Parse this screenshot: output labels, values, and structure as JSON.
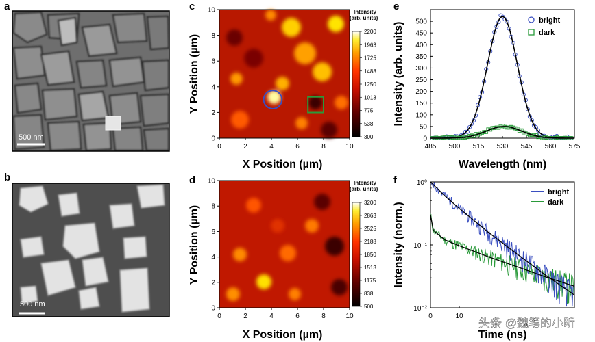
{
  "figure": {
    "panel_labels": {
      "a": "a",
      "b": "b",
      "c": "c",
      "d": "d",
      "e": "e",
      "f": "f"
    },
    "sem": {
      "a": {
        "scale_bar": "500 nm",
        "description": "compact grains"
      },
      "b": {
        "scale_bar": "500 nm",
        "description": "faceted crystals"
      }
    },
    "watermark": "头条 @魏笔的小昕"
  },
  "chart_data": [
    {
      "id": "c",
      "type": "heatmap",
      "xlabel": "X Position (µm)",
      "ylabel": "Y Position (µm)",
      "xlim": [
        0,
        10
      ],
      "ylim": [
        0,
        10
      ],
      "xticks": [
        "0",
        "2",
        "4",
        "6",
        "8",
        "10"
      ],
      "yticks": [
        "0",
        "2",
        "4",
        "6",
        "8",
        "10"
      ],
      "colorbar_title": "Intensity (arb. units)",
      "colorbar_ticks": [
        "2200",
        "1963",
        "1725",
        "1488",
        "1250",
        "1013",
        "775",
        "538",
        "300"
      ],
      "vmin": 300,
      "vmax": 2200,
      "markers": [
        {
          "shape": "circle",
          "label": "bright",
          "x": 4.1,
          "y": 3.0,
          "r": 0.7,
          "color": "#3a4fc0"
        },
        {
          "shape": "square",
          "label": "dark",
          "x": 7.4,
          "y": 2.6,
          "half": 0.6,
          "color": "#2a9a3a"
        }
      ]
    },
    {
      "id": "d",
      "type": "heatmap",
      "xlabel": "X Position (µm)",
      "ylabel": "Y Position (µm)",
      "xlim": [
        0,
        10
      ],
      "ylim": [
        0,
        10
      ],
      "xticks": [
        "0",
        "2",
        "4",
        "6",
        "8",
        "10"
      ],
      "yticks": [
        "0",
        "2",
        "4",
        "6",
        "8",
        "10"
      ],
      "colorbar_title": "Intensity (arb. units)",
      "colorbar_ticks": [
        "3200",
        "2863",
        "2525",
        "2188",
        "1850",
        "1513",
        "1175",
        "838",
        "500"
      ],
      "vmin": 500,
      "vmax": 3200
    },
    {
      "id": "e",
      "type": "scatter",
      "xlabel": "Wavelength (nm)",
      "ylabel": "Intensity (arb. units)",
      "xlim": [
        485,
        575
      ],
      "ylim": [
        0,
        550
      ],
      "xticks": [
        485,
        500,
        515,
        530,
        545,
        560,
        575
      ],
      "yticks": [
        0,
        50,
        100,
        150,
        200,
        250,
        300,
        350,
        400,
        450,
        500
      ],
      "series": [
        {
          "name": "bright",
          "marker": "circle",
          "color": "#3a4fc0",
          "peak_nm": 530,
          "peak_value": 520,
          "fwhm_nm": 22
        },
        {
          "name": "dark",
          "marker": "square",
          "color": "#2a9a3a",
          "peak_nm": 531,
          "peak_value": 50,
          "fwhm_nm": 26
        }
      ],
      "fit_color": "#000000"
    },
    {
      "id": "f",
      "type": "line",
      "xlabel": "Time (ns)",
      "ylabel": "Intensity (norm.)",
      "xscale": "linear",
      "yscale": "log",
      "xlim": [
        0,
        50
      ],
      "ylim": [
        0.01,
        1
      ],
      "xticks": [
        0,
        10
      ],
      "yticks": [
        "10⁻²",
        "10⁻¹",
        "10⁰"
      ],
      "series": [
        {
          "name": "bright",
          "color": "#3a4fc0",
          "points": [
            [
              0,
              1.0
            ],
            [
              5,
              0.6
            ],
            [
              10,
              0.38
            ],
            [
              20,
              0.16
            ],
            [
              30,
              0.072
            ],
            [
              40,
              0.033
            ],
            [
              50,
              0.016
            ]
          ]
        },
        {
          "name": "dark",
          "color": "#2a9a3a",
          "points": [
            [
              0,
              0.3
            ],
            [
              1,
              0.17
            ],
            [
              5,
              0.12
            ],
            [
              10,
              0.097
            ],
            [
              20,
              0.065
            ],
            [
              30,
              0.045
            ],
            [
              40,
              0.031
            ],
            [
              50,
              0.022
            ]
          ]
        }
      ]
    }
  ]
}
